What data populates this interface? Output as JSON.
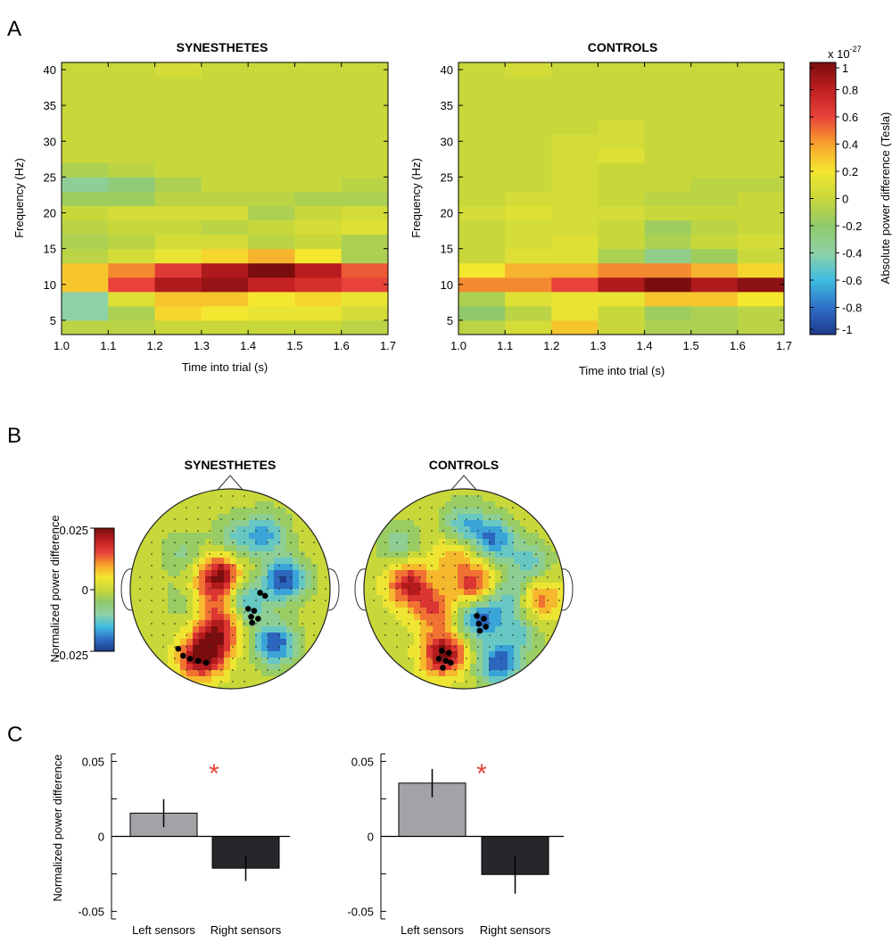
{
  "panel_letters": [
    "A",
    "B",
    "C"
  ],
  "colors": {
    "bar_left": "#a3a3a7",
    "bar_right": "#26262b",
    "significance": "#e8423a",
    "colormap": [
      "#1e3a8a",
      "#2f6fc7",
      "#3fbde0",
      "#8fd1a6",
      "#90c96a",
      "#c8d83a",
      "#f4e730",
      "#f7a22c",
      "#e8423a",
      "#c01e20",
      "#7a0e0e"
    ]
  },
  "chart_data": [
    {
      "type": "heatmap",
      "id": "A-synesthetes",
      "title": "SYNESTHETES",
      "xlabel": "Time into trial (s)",
      "ylabel": "Frequency (Hz)",
      "x_ticks": [
        "1.0",
        "1.1",
        "1.2",
        "1.3",
        "1.4",
        "1.5",
        "1.6",
        "1.7"
      ],
      "y_ticks": [
        "5",
        "10",
        "15",
        "20",
        "25",
        "30",
        "35",
        "40"
      ],
      "xlim": [
        1.0,
        1.7
      ],
      "ylim": [
        3,
        41
      ],
      "x_bins": [
        1.0,
        1.1,
        1.2,
        1.3,
        1.4,
        1.5,
        1.6,
        1.7
      ],
      "y_bins": [
        3,
        5,
        7,
        9,
        11,
        13,
        15,
        17,
        19,
        21,
        23,
        25,
        27,
        29,
        31,
        33,
        35,
        37,
        39,
        41
      ],
      "values_x1e-27": [
        [
          -0.05,
          -0.05,
          0.0,
          0.0,
          0.0,
          0.0,
          -0.05
        ],
        [
          -0.4,
          -0.1,
          0.25,
          0.2,
          0.15,
          0.15,
          0.05
        ],
        [
          -0.4,
          0.1,
          0.3,
          0.3,
          0.2,
          0.25,
          0.15
        ],
        [
          0.3,
          0.6,
          0.85,
          0.92,
          0.78,
          0.7,
          0.6
        ],
        [
          0.3,
          0.45,
          0.65,
          0.85,
          1.0,
          0.82,
          0.55
        ],
        [
          -0.05,
          0.05,
          0.15,
          0.25,
          0.35,
          0.2,
          -0.1
        ],
        [
          -0.1,
          -0.05,
          0.05,
          0.05,
          -0.05,
          0.0,
          -0.1
        ],
        [
          -0.05,
          0.0,
          0.0,
          -0.05,
          0.0,
          0.05,
          0.1
        ],
        [
          0.0,
          0.05,
          0.05,
          0.05,
          -0.1,
          0.0,
          0.05
        ],
        [
          -0.15,
          -0.15,
          -0.05,
          -0.05,
          -0.05,
          -0.1,
          -0.1
        ],
        [
          -0.35,
          -0.25,
          -0.1,
          0.0,
          0.0,
          0.0,
          -0.05
        ],
        [
          -0.1,
          -0.05,
          0.0,
          0.0,
          0.0,
          0.0,
          0.0
        ],
        [
          0.0,
          0.0,
          0.0,
          0.0,
          0.0,
          0.0,
          0.0
        ],
        [
          0.0,
          0.0,
          0.0,
          0.0,
          0.0,
          0.0,
          0.0
        ],
        [
          0.0,
          0.0,
          0.0,
          0.0,
          0.0,
          0.0,
          0.0
        ],
        [
          0.0,
          0.0,
          0.0,
          0.0,
          0.0,
          0.0,
          0.0
        ],
        [
          0.0,
          0.0,
          0.0,
          0.0,
          0.0,
          0.0,
          0.0
        ],
        [
          0.0,
          0.0,
          0.0,
          0.0,
          0.0,
          0.0,
          0.0
        ],
        [
          0.0,
          0.0,
          0.05,
          0.0,
          0.0,
          0.0,
          0.0
        ]
      ]
    },
    {
      "type": "heatmap",
      "id": "A-controls",
      "title": "CONTROLS",
      "xlabel": "Time into trial (s)",
      "ylabel": "Frequency (Hz)",
      "x_ticks": [
        "1.0",
        "1.1",
        "1.2",
        "1.3",
        "1.4",
        "1.5",
        "1.6",
        "1.7"
      ],
      "y_ticks": [
        "5",
        "10",
        "15",
        "20",
        "25",
        "30",
        "35",
        "40"
      ],
      "xlim": [
        1.0,
        1.7
      ],
      "ylim": [
        3,
        41
      ],
      "x_bins": [
        1.0,
        1.1,
        1.2,
        1.3,
        1.4,
        1.5,
        1.6,
        1.7
      ],
      "y_bins": [
        3,
        5,
        7,
        9,
        11,
        13,
        15,
        17,
        19,
        21,
        23,
        25,
        27,
        29,
        31,
        33,
        35,
        37,
        39,
        41
      ],
      "values_x1e-27": [
        [
          -0.05,
          0.05,
          0.3,
          0.0,
          -0.1,
          -0.1,
          -0.05
        ],
        [
          -0.2,
          -0.05,
          0.15,
          0.0,
          -0.15,
          -0.1,
          -0.05
        ],
        [
          -0.1,
          0.1,
          0.15,
          0.15,
          0.3,
          0.3,
          0.2
        ],
        [
          0.45,
          0.45,
          0.6,
          0.85,
          1.0,
          0.85,
          0.95
        ],
        [
          0.2,
          0.35,
          0.35,
          0.45,
          0.45,
          0.35,
          0.25
        ],
        [
          0.0,
          0.1,
          0.1,
          -0.1,
          -0.3,
          -0.15,
          0.0
        ],
        [
          0.0,
          0.05,
          0.1,
          0.0,
          -0.1,
          0.0,
          0.05
        ],
        [
          0.0,
          0.05,
          0.05,
          0.0,
          -0.15,
          -0.05,
          0.0
        ],
        [
          0.05,
          0.1,
          0.05,
          0.05,
          0.0,
          0.0,
          0.0
        ],
        [
          0.0,
          0.05,
          0.05,
          0.0,
          -0.05,
          -0.05,
          0.0
        ],
        [
          0.0,
          0.0,
          0.05,
          0.0,
          0.0,
          -0.05,
          -0.05
        ],
        [
          0.0,
          0.0,
          0.05,
          0.0,
          0.0,
          0.0,
          0.0
        ],
        [
          0.0,
          0.0,
          0.05,
          0.1,
          0.0,
          0.0,
          0.0
        ],
        [
          0.0,
          0.0,
          0.05,
          0.05,
          0.0,
          0.0,
          0.0
        ],
        [
          0.0,
          0.0,
          0.0,
          0.05,
          0.0,
          0.0,
          0.0
        ],
        [
          0.0,
          0.0,
          0.0,
          0.0,
          0.0,
          0.0,
          0.0
        ],
        [
          0.0,
          0.0,
          0.0,
          0.0,
          0.0,
          0.0,
          0.0
        ],
        [
          0.0,
          0.0,
          0.0,
          0.0,
          0.0,
          0.0,
          0.0
        ],
        [
          0.0,
          0.05,
          0.0,
          0.0,
          0.0,
          0.0,
          0.0
        ]
      ]
    },
    {
      "type": "colorbar",
      "id": "A-colorbar",
      "label": "Absolute power difference (Tesla)",
      "exponent_base": "x 10",
      "exponent_power": "-27",
      "ticks": [
        "1",
        "0.8",
        "0.6",
        "0.4",
        "0.2",
        "0",
        "-0.2",
        "-0.4",
        "-0.6",
        "-0.8",
        "-1"
      ],
      "range": [
        -1,
        1
      ]
    },
    {
      "type": "topoplot",
      "id": "B-synesthetes",
      "title": "SYNESTHETES",
      "colorbar": {
        "label": "Normalized power difference",
        "ticks": [
          "0.025",
          "0",
          "-0.025"
        ],
        "range": [
          -0.025,
          0.025
        ]
      },
      "blobs": [
        {
          "u": -0.45,
          "v": 0.35,
          "value": -0.3
        },
        {
          "u": -0.2,
          "v": 0.0,
          "value": 0.25
        },
        {
          "u": -0.1,
          "v": 0.15,
          "value": 0.85
        },
        {
          "u": -0.3,
          "v": -0.7,
          "value": 0.9
        },
        {
          "u": -0.15,
          "v": -0.5,
          "value": 0.75
        },
        {
          "u": -0.05,
          "v": -0.25,
          "value": 0.55
        },
        {
          "u": 0.15,
          "v": -0.15,
          "value": -0.7
        },
        {
          "u": 0.55,
          "v": 0.1,
          "value": -0.95
        },
        {
          "u": 0.45,
          "v": -0.55,
          "value": -0.9
        },
        {
          "u": 0.35,
          "v": 0.55,
          "value": -0.6
        },
        {
          "u": 0.05,
          "v": 0.5,
          "value": -0.4
        },
        {
          "u": -0.75,
          "v": -0.2,
          "value": 0.1
        },
        {
          "u": -0.55,
          "v": -0.15,
          "value": -0.2
        }
      ],
      "marked_sensors": [
        {
          "u": -0.52,
          "v": -0.6
        },
        {
          "u": -0.47,
          "v": -0.67
        },
        {
          "u": -0.4,
          "v": -0.7
        },
        {
          "u": -0.32,
          "v": -0.72
        },
        {
          "u": -0.24,
          "v": -0.74
        },
        {
          "u": 0.18,
          "v": -0.2
        },
        {
          "u": 0.24,
          "v": -0.22
        },
        {
          "u": 0.21,
          "v": -0.28
        },
        {
          "u": 0.28,
          "v": -0.3
        },
        {
          "u": 0.22,
          "v": -0.34
        },
        {
          "u": 0.3,
          "v": -0.04
        },
        {
          "u": 0.35,
          "v": -0.07
        }
      ]
    },
    {
      "type": "topoplot",
      "id": "B-controls",
      "title": "CONTROLS",
      "blobs": [
        {
          "u": -0.2,
          "v": -0.65,
          "value": 1.0
        },
        {
          "u": -0.55,
          "v": 0.05,
          "value": 0.8
        },
        {
          "u": -0.3,
          "v": -0.2,
          "value": 0.6
        },
        {
          "u": 0.1,
          "v": 0.05,
          "value": 0.7
        },
        {
          "u": -0.1,
          "v": 0.35,
          "value": 0.35
        },
        {
          "u": 0.15,
          "v": -0.3,
          "value": -0.8
        },
        {
          "u": 0.3,
          "v": 0.5,
          "value": -0.75
        },
        {
          "u": 0.0,
          "v": 0.65,
          "value": -0.55
        },
        {
          "u": 0.65,
          "v": 0.25,
          "value": -0.5
        },
        {
          "u": 0.55,
          "v": -0.45,
          "value": -0.45
        },
        {
          "u": 0.35,
          "v": -0.75,
          "value": -0.85
        },
        {
          "u": -0.65,
          "v": 0.45,
          "value": -0.35
        },
        {
          "u": 0.75,
          "v": -0.1,
          "value": 0.55
        },
        {
          "u": 0.45,
          "v": -0.1,
          "value": -0.5
        }
      ],
      "marked_sensors": [
        {
          "u": -0.22,
          "v": -0.62
        },
        {
          "u": -0.15,
          "v": -0.64
        },
        {
          "u": -0.25,
          "v": -0.7
        },
        {
          "u": -0.18,
          "v": -0.72
        },
        {
          "u": -0.21,
          "v": -0.79
        },
        {
          "u": -0.13,
          "v": -0.74
        },
        {
          "u": 0.13,
          "v": -0.27
        },
        {
          "u": 0.2,
          "v": -0.3
        },
        {
          "u": 0.15,
          "v": -0.35
        },
        {
          "u": 0.22,
          "v": -0.38
        },
        {
          "u": 0.16,
          "v": -0.42
        }
      ]
    },
    {
      "type": "bar",
      "id": "C-synesthetes",
      "ylabel": "Normalized power difference",
      "ylim": [
        -0.055,
        0.055
      ],
      "y_ticks": [
        0.05,
        0,
        -0.05
      ],
      "y_tick_labels": [
        "0.05",
        "0",
        "-0.05"
      ],
      "categories": [
        "Left sensors",
        "Right sensors"
      ],
      "values": [
        0.0155,
        -0.0212
      ],
      "errors": [
        0.0093,
        0.0085
      ],
      "significance": "*"
    },
    {
      "type": "bar",
      "id": "C-controls",
      "ylim": [
        -0.055,
        0.055
      ],
      "y_ticks": [
        0.05,
        0,
        -0.05
      ],
      "y_tick_labels": [
        "0.05",
        "0",
        "-0.05"
      ],
      "categories": [
        "Left sensors",
        "Right sensors"
      ],
      "values": [
        0.0355,
        -0.0254
      ],
      "errors": [
        0.0094,
        0.0128
      ],
      "significance": "*"
    }
  ]
}
